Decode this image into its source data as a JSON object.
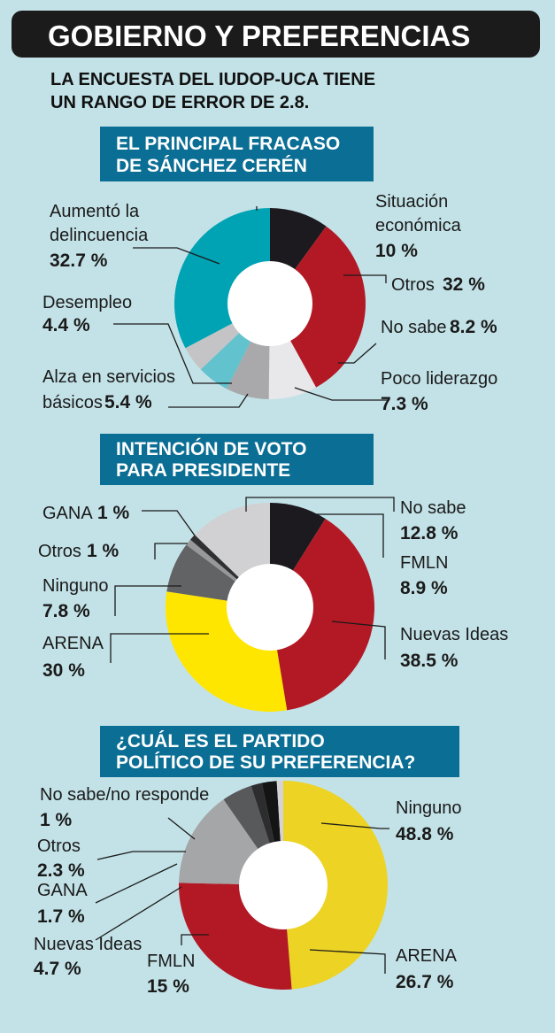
{
  "header": {
    "title": "GOBIERNO Y PREFERENCIAS",
    "subtitle_line1": "LA ENCUESTA DEL IUDOP-UCA TIENE",
    "subtitle_line2": "UN RANGO DE ERROR DE 2.8."
  },
  "colors": {
    "background": "#c3e2e7",
    "section_header": "#0b6e94",
    "title_bar": "#1b1b1b"
  },
  "chart_data": [
    {
      "type": "pie",
      "title_lines": [
        "EL PRINCIPAL FRACASO",
        "DE SÁNCHEZ CERÉN"
      ],
      "slices": [
        {
          "lines": [
            "Situación",
            "económica"
          ],
          "pre": "",
          "value_text": "10 %",
          "value": 10,
          "color": "#1c1a1f"
        },
        {
          "lines": [
            "Otros"
          ],
          "pre": "Otros",
          "value_text": "32 %",
          "value": 32,
          "color": "#b31924"
        },
        {
          "lines": [
            "No sabe"
          ],
          "pre": "No sabe",
          "value_text": "8.2 %",
          "value": 8.2,
          "color": "#e8e8ea"
        },
        {
          "lines": [
            "Poco liderazgo"
          ],
          "pre": "",
          "value_text": "7.3 %",
          "value": 7.3,
          "color": "#a9a9ab"
        },
        {
          "lines": [
            "Alza en servicios",
            "básicos"
          ],
          "pre": "básicos",
          "value_text": "5.4 %",
          "value": 5.4,
          "color": "#62c2cd"
        },
        {
          "lines": [
            "Desempleo"
          ],
          "pre": "",
          "value_text": "4.4 %",
          "value": 4.4,
          "color": "#c4c4c6"
        },
        {
          "lines": [
            "Aumentó la",
            "delincuencia"
          ],
          "pre": "",
          "value_text": "32.7 %",
          "value": 32.7,
          "color": "#00a3b4"
        }
      ]
    },
    {
      "type": "pie",
      "title_lines": [
        "INTENCIÓN DE VOTO",
        "PARA PRESIDENTE"
      ],
      "slices": [
        {
          "lines": [
            "FMLN"
          ],
          "pre": "",
          "value_text": "8.9 %",
          "value": 8.9,
          "color": "#1c1a1f"
        },
        {
          "lines": [
            "Nuevas Ideas"
          ],
          "pre": "",
          "value_text": "38.5 %",
          "value": 38.5,
          "color": "#b31924"
        },
        {
          "lines": [
            "ARENA"
          ],
          "pre": "",
          "value_text": "30 %",
          "value": 30,
          "color": "#ffe600"
        },
        {
          "lines": [
            "Ninguno"
          ],
          "pre": "",
          "value_text": "7.8 %",
          "value": 7.8,
          "color": "#626365"
        },
        {
          "lines": [
            "Otros"
          ],
          "pre": "Otros",
          "value_text": "1 %",
          "value": 1,
          "color": "#97989a"
        },
        {
          "lines": [
            "GANA"
          ],
          "pre": "GANA",
          "value_text": "1 %",
          "value": 1,
          "color": "#303033"
        },
        {
          "lines": [
            "No sabe"
          ],
          "pre": "",
          "value_text": "12.8 %",
          "value": 12.8,
          "color": "#d1d1d3"
        }
      ]
    },
    {
      "type": "pie",
      "title_lines": [
        "¿CUÁL ES EL PARTIDO",
        "POLÍTICO DE SU PREFERENCIA?"
      ],
      "slices": [
        {
          "lines": [
            "Ninguno"
          ],
          "pre": "",
          "value_text": "48.8 %",
          "value": 48.8,
          "color": "#ecd324"
        },
        {
          "lines": [
            "ARENA"
          ],
          "pre": "",
          "value_text": "26.7 %",
          "value": 26.7,
          "color": "#b31924"
        },
        {
          "lines": [
            "FMLN"
          ],
          "pre": "",
          "value_text": "15 %",
          "value": 15,
          "color": "#a5a6a8"
        },
        {
          "lines": [
            "Nuevas Ideas"
          ],
          "pre": "",
          "value_text": "4.7 %",
          "value": 4.7,
          "color": "#58595b"
        },
        {
          "lines": [
            "GANA"
          ],
          "pre": "",
          "value_text": "1.7 %",
          "value": 1.7,
          "color": "#2d2d30"
        },
        {
          "lines": [
            "Otros"
          ],
          "pre": "",
          "value_text": "2.3 %",
          "value": 2.3,
          "color": "#141414"
        },
        {
          "lines": [
            "No sabe/no responde"
          ],
          "pre": "",
          "value_text": "1 %",
          "value": 1,
          "color": "#d3d3d5"
        }
      ]
    }
  ]
}
